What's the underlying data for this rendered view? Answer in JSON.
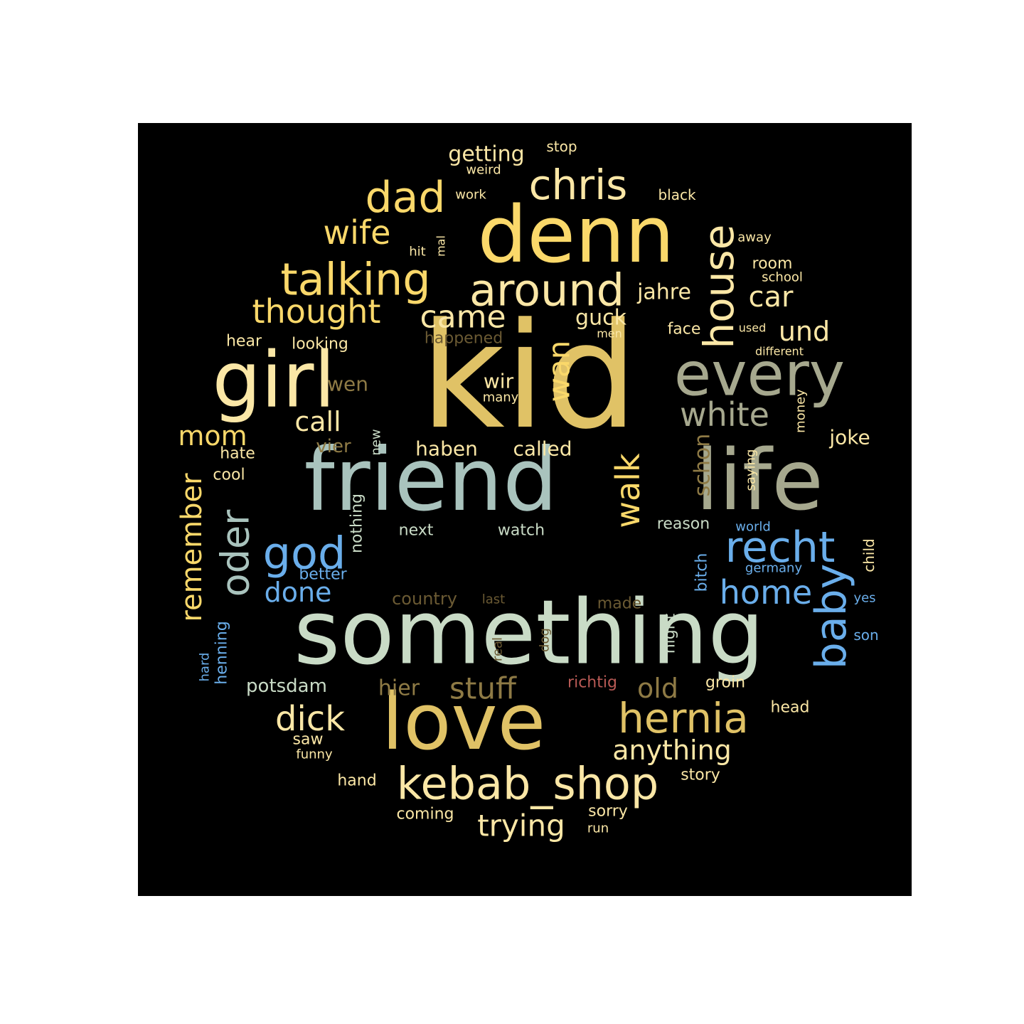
{
  "word_cloud": {
    "colors": {
      "gold": "#E0C266",
      "yellow": "#FAD86A",
      "pale_yellow": "#FBE7A6",
      "sage": "#A6A88E",
      "teal_gray": "#A9C3BD",
      "mint": "#C9DBC6",
      "blue": "#6AAEEB",
      "brown": "#8E7A45",
      "dark_brown": "#6B5A33",
      "rose": "#B85A55"
    },
    "words": [
      {
        "text": "kid",
        "color": "gold"
      },
      {
        "text": "friend",
        "color": "teal_gray"
      },
      {
        "text": "something",
        "color": "mint"
      },
      {
        "text": "denn",
        "color": "yellow"
      },
      {
        "text": "girl",
        "color": "pale_yellow"
      },
      {
        "text": "love",
        "color": "gold"
      },
      {
        "text": "life",
        "color": "sage"
      },
      {
        "text": "every",
        "color": "sage"
      },
      {
        "text": "kebab_shop",
        "color": "pale_yellow"
      },
      {
        "text": "talking",
        "color": "yellow"
      },
      {
        "text": "around",
        "color": "pale_yellow"
      },
      {
        "text": "hernia",
        "color": "gold"
      },
      {
        "text": "chris",
        "color": "pale_yellow"
      },
      {
        "text": "dad",
        "color": "yellow"
      },
      {
        "text": "house",
        "color": "pale_yellow"
      },
      {
        "text": "thought",
        "color": "yellow"
      },
      {
        "text": "recht",
        "color": "blue"
      },
      {
        "text": "baby",
        "color": "blue"
      },
      {
        "text": "god",
        "color": "blue"
      },
      {
        "text": "walk",
        "color": "yellow"
      },
      {
        "text": "white",
        "color": "sage"
      },
      {
        "text": "oder",
        "color": "teal_gray"
      },
      {
        "text": "home",
        "color": "blue"
      },
      {
        "text": "anything",
        "color": "pale_yellow"
      },
      {
        "text": "trying",
        "color": "pale_yellow"
      },
      {
        "text": "wife",
        "color": "yellow"
      },
      {
        "text": "came",
        "color": "pale_yellow"
      },
      {
        "text": "car",
        "color": "pale_yellow"
      },
      {
        "text": "dick",
        "color": "pale_yellow"
      },
      {
        "text": "stuff",
        "color": "brown"
      },
      {
        "text": "wan",
        "color": "yellow"
      },
      {
        "text": "remember",
        "color": "yellow"
      },
      {
        "text": "und",
        "color": "pale_yellow"
      },
      {
        "text": "done",
        "color": "blue"
      },
      {
        "text": "call",
        "color": "pale_yellow"
      },
      {
        "text": "mom",
        "color": "yellow"
      },
      {
        "text": "old",
        "color": "brown"
      },
      {
        "text": "getting",
        "color": "pale_yellow"
      },
      {
        "text": "schon",
        "color": "brown"
      },
      {
        "text": "guck",
        "color": "pale_yellow"
      },
      {
        "text": "jahre",
        "color": "pale_yellow"
      },
      {
        "text": "haben",
        "color": "pale_yellow"
      },
      {
        "text": "called",
        "color": "pale_yellow"
      },
      {
        "text": "potsdam",
        "color": "mint"
      },
      {
        "text": "hier",
        "color": "brown"
      },
      {
        "text": "wir",
        "color": "pale_yellow"
      },
      {
        "text": "wen",
        "color": "brown"
      },
      {
        "text": "joke",
        "color": "pale_yellow"
      },
      {
        "text": "vier",
        "color": "brown"
      },
      {
        "text": "nothing",
        "color": "mint"
      },
      {
        "text": "bitch",
        "color": "blue"
      },
      {
        "text": "country",
        "color": "dark_brown"
      },
      {
        "text": "night",
        "color": "mint"
      },
      {
        "text": "room",
        "color": "pale_yellow"
      },
      {
        "text": "richtig",
        "color": "rose"
      },
      {
        "text": "made",
        "color": "dark_brown"
      },
      {
        "text": "groin",
        "color": "pale_yellow"
      },
      {
        "text": "saw",
        "color": "pale_yellow"
      },
      {
        "text": "hate",
        "color": "pale_yellow"
      },
      {
        "text": "next",
        "color": "mint"
      },
      {
        "text": "watch",
        "color": "mint"
      },
      {
        "text": "reason",
        "color": "mint"
      },
      {
        "text": "head",
        "color": "pale_yellow"
      },
      {
        "text": "story",
        "color": "pale_yellow"
      },
      {
        "text": "coming",
        "color": "pale_yellow"
      },
      {
        "text": "sorry",
        "color": "pale_yellow"
      },
      {
        "text": "hand",
        "color": "pale_yellow"
      },
      {
        "text": "looking",
        "color": "pale_yellow"
      },
      {
        "text": "happened",
        "color": "dark_brown"
      },
      {
        "text": "hear",
        "color": "pale_yellow"
      },
      {
        "text": "face",
        "color": "pale_yellow"
      },
      {
        "text": "cool",
        "color": "pale_yellow"
      },
      {
        "text": "better",
        "color": "blue"
      },
      {
        "text": "henning",
        "color": "blue"
      },
      {
        "text": "child",
        "color": "pale_yellow"
      },
      {
        "text": "son",
        "color": "blue"
      },
      {
        "text": "germany",
        "color": "blue"
      },
      {
        "text": "world",
        "color": "blue"
      },
      {
        "text": "yes",
        "color": "blue"
      },
      {
        "text": "real",
        "color": "dark_brown"
      },
      {
        "text": "dog",
        "color": "dark_brown"
      },
      {
        "text": "last",
        "color": "dark_brown"
      },
      {
        "text": "saying",
        "color": "pale_yellow"
      },
      {
        "text": "money",
        "color": "pale_yellow"
      },
      {
        "text": "new",
        "color": "mint"
      },
      {
        "text": "many",
        "color": "pale_yellow"
      },
      {
        "text": "funny",
        "color": "pale_yellow"
      },
      {
        "text": "run",
        "color": "pale_yellow"
      },
      {
        "text": "hard",
        "color": "blue"
      },
      {
        "text": "work",
        "color": "pale_yellow"
      },
      {
        "text": "black",
        "color": "pale_yellow"
      },
      {
        "text": "stop",
        "color": "pale_yellow"
      },
      {
        "text": "weird",
        "color": "pale_yellow"
      },
      {
        "text": "away",
        "color": "pale_yellow"
      },
      {
        "text": "hit",
        "color": "pale_yellow"
      },
      {
        "text": "mal",
        "color": "pale_yellow"
      },
      {
        "text": "school",
        "color": "pale_yellow"
      },
      {
        "text": "used",
        "color": "pale_yellow"
      },
      {
        "text": "different",
        "color": "pale_yellow"
      },
      {
        "text": "men",
        "color": "pale_yellow"
      }
    ]
  }
}
